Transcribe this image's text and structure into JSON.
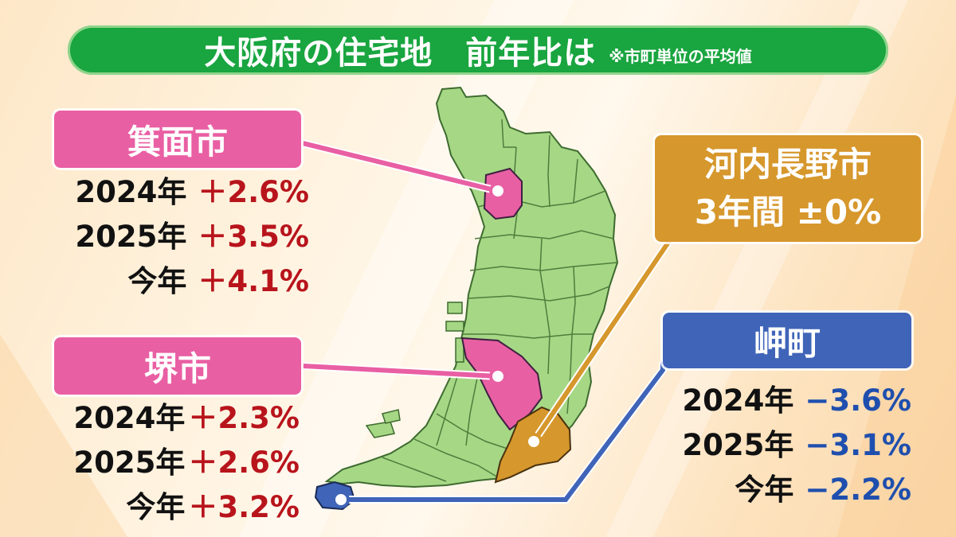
{
  "title": {
    "main": "大阪府の住宅地　前年比は",
    "note": "※市町単位の平均値"
  },
  "minoh": {
    "name": "箕面市",
    "rows": [
      {
        "year": "2024年",
        "value": "＋2.6%"
      },
      {
        "year": "2025年",
        "value": "＋3.5%"
      },
      {
        "year": "今年",
        "value": "＋4.1%"
      }
    ]
  },
  "sakai": {
    "name": "堺市",
    "rows": [
      {
        "year": "2024年",
        "value": "＋2.3%"
      },
      {
        "year": "2025年",
        "value": "＋2.6%"
      },
      {
        "year": "今年",
        "value": "＋3.2%"
      }
    ]
  },
  "kawachinagano": {
    "name": "河内長野市",
    "summary": "3年間 ±0%"
  },
  "misaki": {
    "name": "岬町",
    "rows": [
      {
        "year": "2024年",
        "value": "−3.6%"
      },
      {
        "year": "2025年",
        "value": "−3.1%"
      },
      {
        "year": "今年",
        "value": "−2.2%"
      }
    ]
  },
  "colors": {
    "title_green": "#19a53f",
    "map_green": "#a6d785",
    "pink": "#e95fa3",
    "gold": "#d6972c",
    "blue": "#3f64b8",
    "plus_red": "#b8141c",
    "minus_blue": "#1f4fae"
  }
}
